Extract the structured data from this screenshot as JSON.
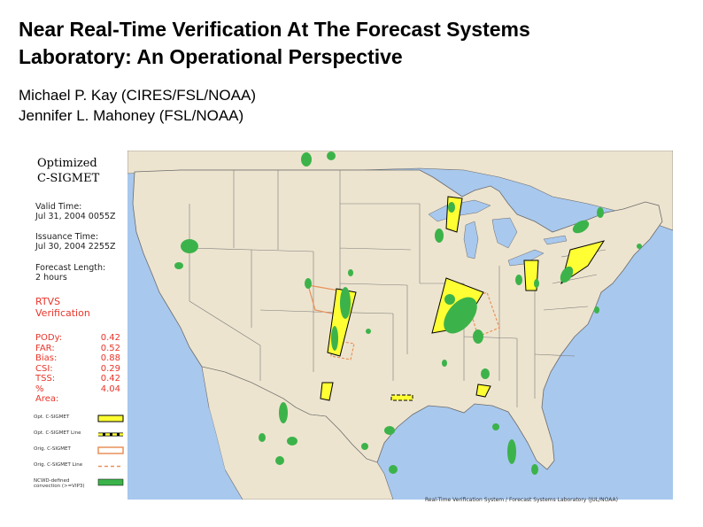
{
  "slide": {
    "title_line1": "Near Real-Time Verification At The Forecast Systems",
    "title_line2": "Laboratory: An Operational Perspective",
    "author1": "Michael P. Kay (CIRES/FSL/NOAA)",
    "author2": "Jennifer L. Mahoney (FSL/NOAA)"
  },
  "panel": {
    "product_line1": "Optimized",
    "product_line2": "C-SIGMET",
    "valid_label": "Valid Time:",
    "valid_value": "Jul 31, 2004 0055Z",
    "issuance_label": "Issuance Time:",
    "issuance_value": "Jul 30, 2004 2255Z",
    "forecast_label": "Forecast Length:",
    "forecast_value": "2 hours",
    "verification_line1": "RTVS",
    "verification_line2": "Verification",
    "stats": [
      {
        "key": "PODy:",
        "value": "0.42"
      },
      {
        "key": "FAR:",
        "value": "0.52"
      },
      {
        "key": "Bias:",
        "value": "0.88"
      },
      {
        "key": "CSI:",
        "value": "0.29"
      },
      {
        "key": "TSS:",
        "value": "0.42"
      },
      {
        "key": "% Area:",
        "value": "4.04"
      }
    ],
    "legend": [
      {
        "label": "Opt. C-SIGMET",
        "style": "yellow-fill",
        "color": "#ffff33"
      },
      {
        "label": "Opt. C-SIGMET Line",
        "style": "yellow-dashed",
        "color": "#ffff33"
      },
      {
        "label": "Orig. C-SIGMET",
        "style": "orange-outline",
        "color": "#e8915a"
      },
      {
        "label": "Orig. C-SIGMET Line",
        "style": "orange-dashed",
        "color": "#e8915a"
      },
      {
        "label": "NCWD-defined convection (>=VIP3)",
        "style": "green-fill",
        "color": "#3cb34a"
      }
    ]
  },
  "map": {
    "credit": "Real-Time Verification System / Forecast Systems Laboratory (JUL/NOAA)",
    "land_color": "#ede4cf",
    "water_color": "#a8c8ee",
    "convection_color": "#3cb34a",
    "optimized_color": "#ffff33",
    "original_color": "#e8915a"
  }
}
